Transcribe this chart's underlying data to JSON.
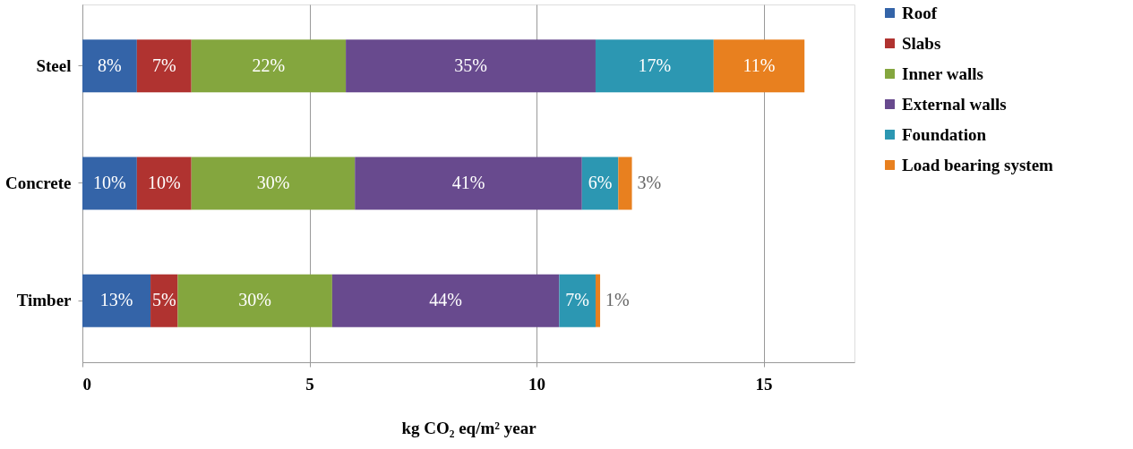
{
  "chart_data": {
    "type": "bar",
    "orientation": "horizontal",
    "stacked": true,
    "categories": [
      "Steel",
      "Concrete",
      "Timber"
    ],
    "xlabel": "kg CO₂ eq/m² year",
    "xlim": [
      0,
      17
    ],
    "xticks": [
      0,
      5,
      10,
      15
    ],
    "grid": "x",
    "legend": "right",
    "series": [
      {
        "name": "Roof",
        "color": "#3464a8",
        "values": [
          1.2,
          1.2,
          1.5
        ]
      },
      {
        "name": "Slabs",
        "color": "#b03330",
        "values": [
          1.2,
          1.2,
          0.6
        ]
      },
      {
        "name": "Inner walls",
        "color": "#84a63e",
        "values": [
          3.4,
          3.6,
          3.4
        ]
      },
      {
        "name": "External walls",
        "color": "#684a8e",
        "values": [
          5.5,
          5.0,
          5.0
        ]
      },
      {
        "name": "Foundation",
        "color": "#2c97b2",
        "values": [
          2.6,
          0.8,
          0.8
        ]
      },
      {
        "name": "Load bearing system",
        "color": "#e8801f",
        "values": [
          2.0,
          0.3,
          0.1
        ]
      }
    ],
    "annotations": [
      "8%",
      "7%",
      "22%",
      "35%",
      "17%",
      "11%",
      "10%",
      "10%",
      "30%",
      "41%",
      "6%",
      "3%",
      "13%",
      "5%",
      "30%",
      "44%",
      "7%",
      "1%"
    ]
  }
}
